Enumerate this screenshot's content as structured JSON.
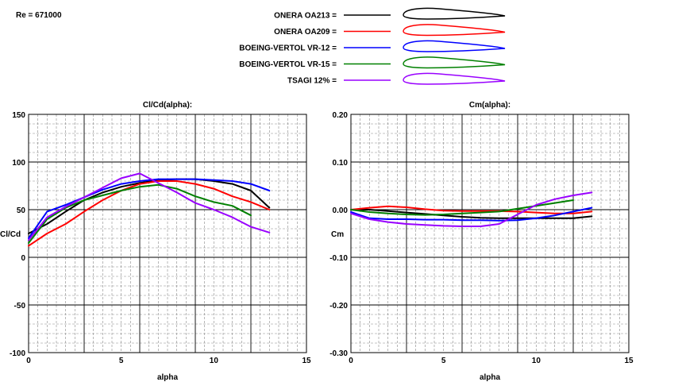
{
  "header": {
    "reynolds": "Re = 671000"
  },
  "legend": [
    {
      "name": "ONERA OA213 =",
      "color": "#000000"
    },
    {
      "name": "ONERA OA209 =",
      "color": "#ff0000"
    },
    {
      "name": "BOEING-VERTOL VR-12 =",
      "color": "#0000ff"
    },
    {
      "name": "BOEING-VERTOL VR-15 =",
      "color": "#008000"
    },
    {
      "name": "TSAGI 12% =",
      "color": "#9900ff"
    }
  ],
  "chart_data": [
    {
      "type": "line",
      "title": "Cl/Cd(alpha):",
      "xlabel": "alpha",
      "ylabel": "Cl/Cd",
      "xlim": [
        0,
        15
      ],
      "ylim": [
        -100,
        150
      ],
      "xticks": [
        "0",
        "5",
        "10",
        "15"
      ],
      "yticks": [
        "-100",
        "-50",
        "0",
        "50",
        "100",
        "150"
      ],
      "grid": true,
      "series": [
        {
          "name": "ONERA OA213",
          "color": "#000000",
          "x": [
            0,
            1,
            2,
            3,
            4,
            5,
            6,
            7,
            8,
            9,
            10,
            11,
            12,
            13
          ],
          "y": [
            25,
            35,
            48,
            60,
            68,
            74,
            78,
            81,
            82,
            82,
            80,
            77,
            70,
            52
          ]
        },
        {
          "name": "ONERA OA209",
          "color": "#ff0000",
          "x": [
            0,
            1,
            2,
            3,
            4,
            5,
            6,
            7,
            8,
            9,
            10,
            11,
            12,
            13
          ],
          "y": [
            12,
            25,
            35,
            48,
            60,
            70,
            77,
            80,
            80,
            77,
            72,
            64,
            58,
            50
          ]
        },
        {
          "name": "BOEING-VERTOL VR-12",
          "color": "#0000ff",
          "x": [
            0,
            1,
            2,
            3,
            4,
            5,
            6,
            7,
            8,
            9,
            10,
            11,
            12,
            13
          ],
          "y": [
            20,
            48,
            55,
            63,
            71,
            77,
            80,
            82,
            82,
            82,
            81,
            80,
            77,
            70
          ]
        },
        {
          "name": "BOEING-VERTOL VR-15",
          "color": "#008000",
          "x": [
            0,
            1,
            2,
            3,
            4,
            5,
            6,
            7,
            8,
            9,
            10,
            11,
            12
          ],
          "y": [
            15,
            40,
            52,
            60,
            65,
            70,
            74,
            76,
            72,
            64,
            58,
            54,
            44
          ]
        },
        {
          "name": "TSAGI 12%",
          "color": "#9900ff",
          "x": [
            0,
            1,
            2,
            3,
            4,
            5,
            6,
            7,
            8,
            9,
            10,
            11,
            12,
            13
          ],
          "y": [
            18,
            42,
            53,
            63,
            73,
            83,
            88,
            78,
            68,
            57,
            50,
            42,
            32,
            26
          ]
        }
      ]
    },
    {
      "type": "line",
      "title": "Cm(alpha):",
      "xlabel": "alpha",
      "ylabel": "Cm",
      "xlim": [
        0,
        15
      ],
      "ylim": [
        -0.3,
        0.2
      ],
      "xticks": [
        "0",
        "5",
        "10",
        "15"
      ],
      "yticks": [
        "-0.30",
        "-0.20",
        "-0.10",
        "0.00",
        "0.10",
        "0.20"
      ],
      "grid": true,
      "series": [
        {
          "name": "ONERA OA213",
          "color": "#000000",
          "x": [
            0,
            1,
            2,
            3,
            4,
            5,
            6,
            7,
            8,
            9,
            10,
            11,
            12,
            13
          ],
          "y": [
            0.0,
            0.0,
            -0.003,
            -0.006,
            -0.009,
            -0.012,
            -0.015,
            -0.017,
            -0.018,
            -0.018,
            -0.018,
            -0.018,
            -0.018,
            -0.014
          ]
        },
        {
          "name": "ONERA OA209",
          "color": "#ff0000",
          "x": [
            0,
            1,
            2,
            3,
            4,
            5,
            6,
            7,
            8,
            9,
            10,
            11,
            12,
            13
          ],
          "y": [
            0.0,
            0.004,
            0.007,
            0.005,
            0.001,
            -0.002,
            -0.003,
            -0.003,
            -0.003,
            -0.004,
            -0.006,
            -0.008,
            -0.008,
            -0.004
          ]
        },
        {
          "name": "BOEING-VERTOL VR-12",
          "color": "#0000ff",
          "x": [
            0,
            1,
            2,
            3,
            4,
            5,
            6,
            7,
            8,
            9,
            10,
            11,
            12,
            13
          ],
          "y": [
            -0.005,
            -0.018,
            -0.02,
            -0.02,
            -0.021,
            -0.021,
            -0.022,
            -0.022,
            -0.023,
            -0.022,
            -0.018,
            -0.012,
            -0.004,
            0.004
          ]
        },
        {
          "name": "BOEING-VERTOL VR-15",
          "color": "#008000",
          "x": [
            0,
            1,
            2,
            3,
            4,
            5,
            6,
            7,
            8,
            9,
            10,
            11,
            12
          ],
          "y": [
            0.0,
            -0.005,
            -0.008,
            -0.01,
            -0.011,
            -0.01,
            -0.008,
            -0.006,
            -0.004,
            0.002,
            0.008,
            0.014,
            0.02
          ]
        },
        {
          "name": "TSAGI 12%",
          "color": "#9900ff",
          "x": [
            0,
            1,
            2,
            3,
            4,
            5,
            6,
            7,
            8,
            9,
            10,
            11,
            12,
            13
          ],
          "y": [
            -0.008,
            -0.02,
            -0.026,
            -0.03,
            -0.032,
            -0.034,
            -0.035,
            -0.035,
            -0.03,
            -0.01,
            0.01,
            0.022,
            0.03,
            0.036
          ]
        }
      ]
    }
  ]
}
